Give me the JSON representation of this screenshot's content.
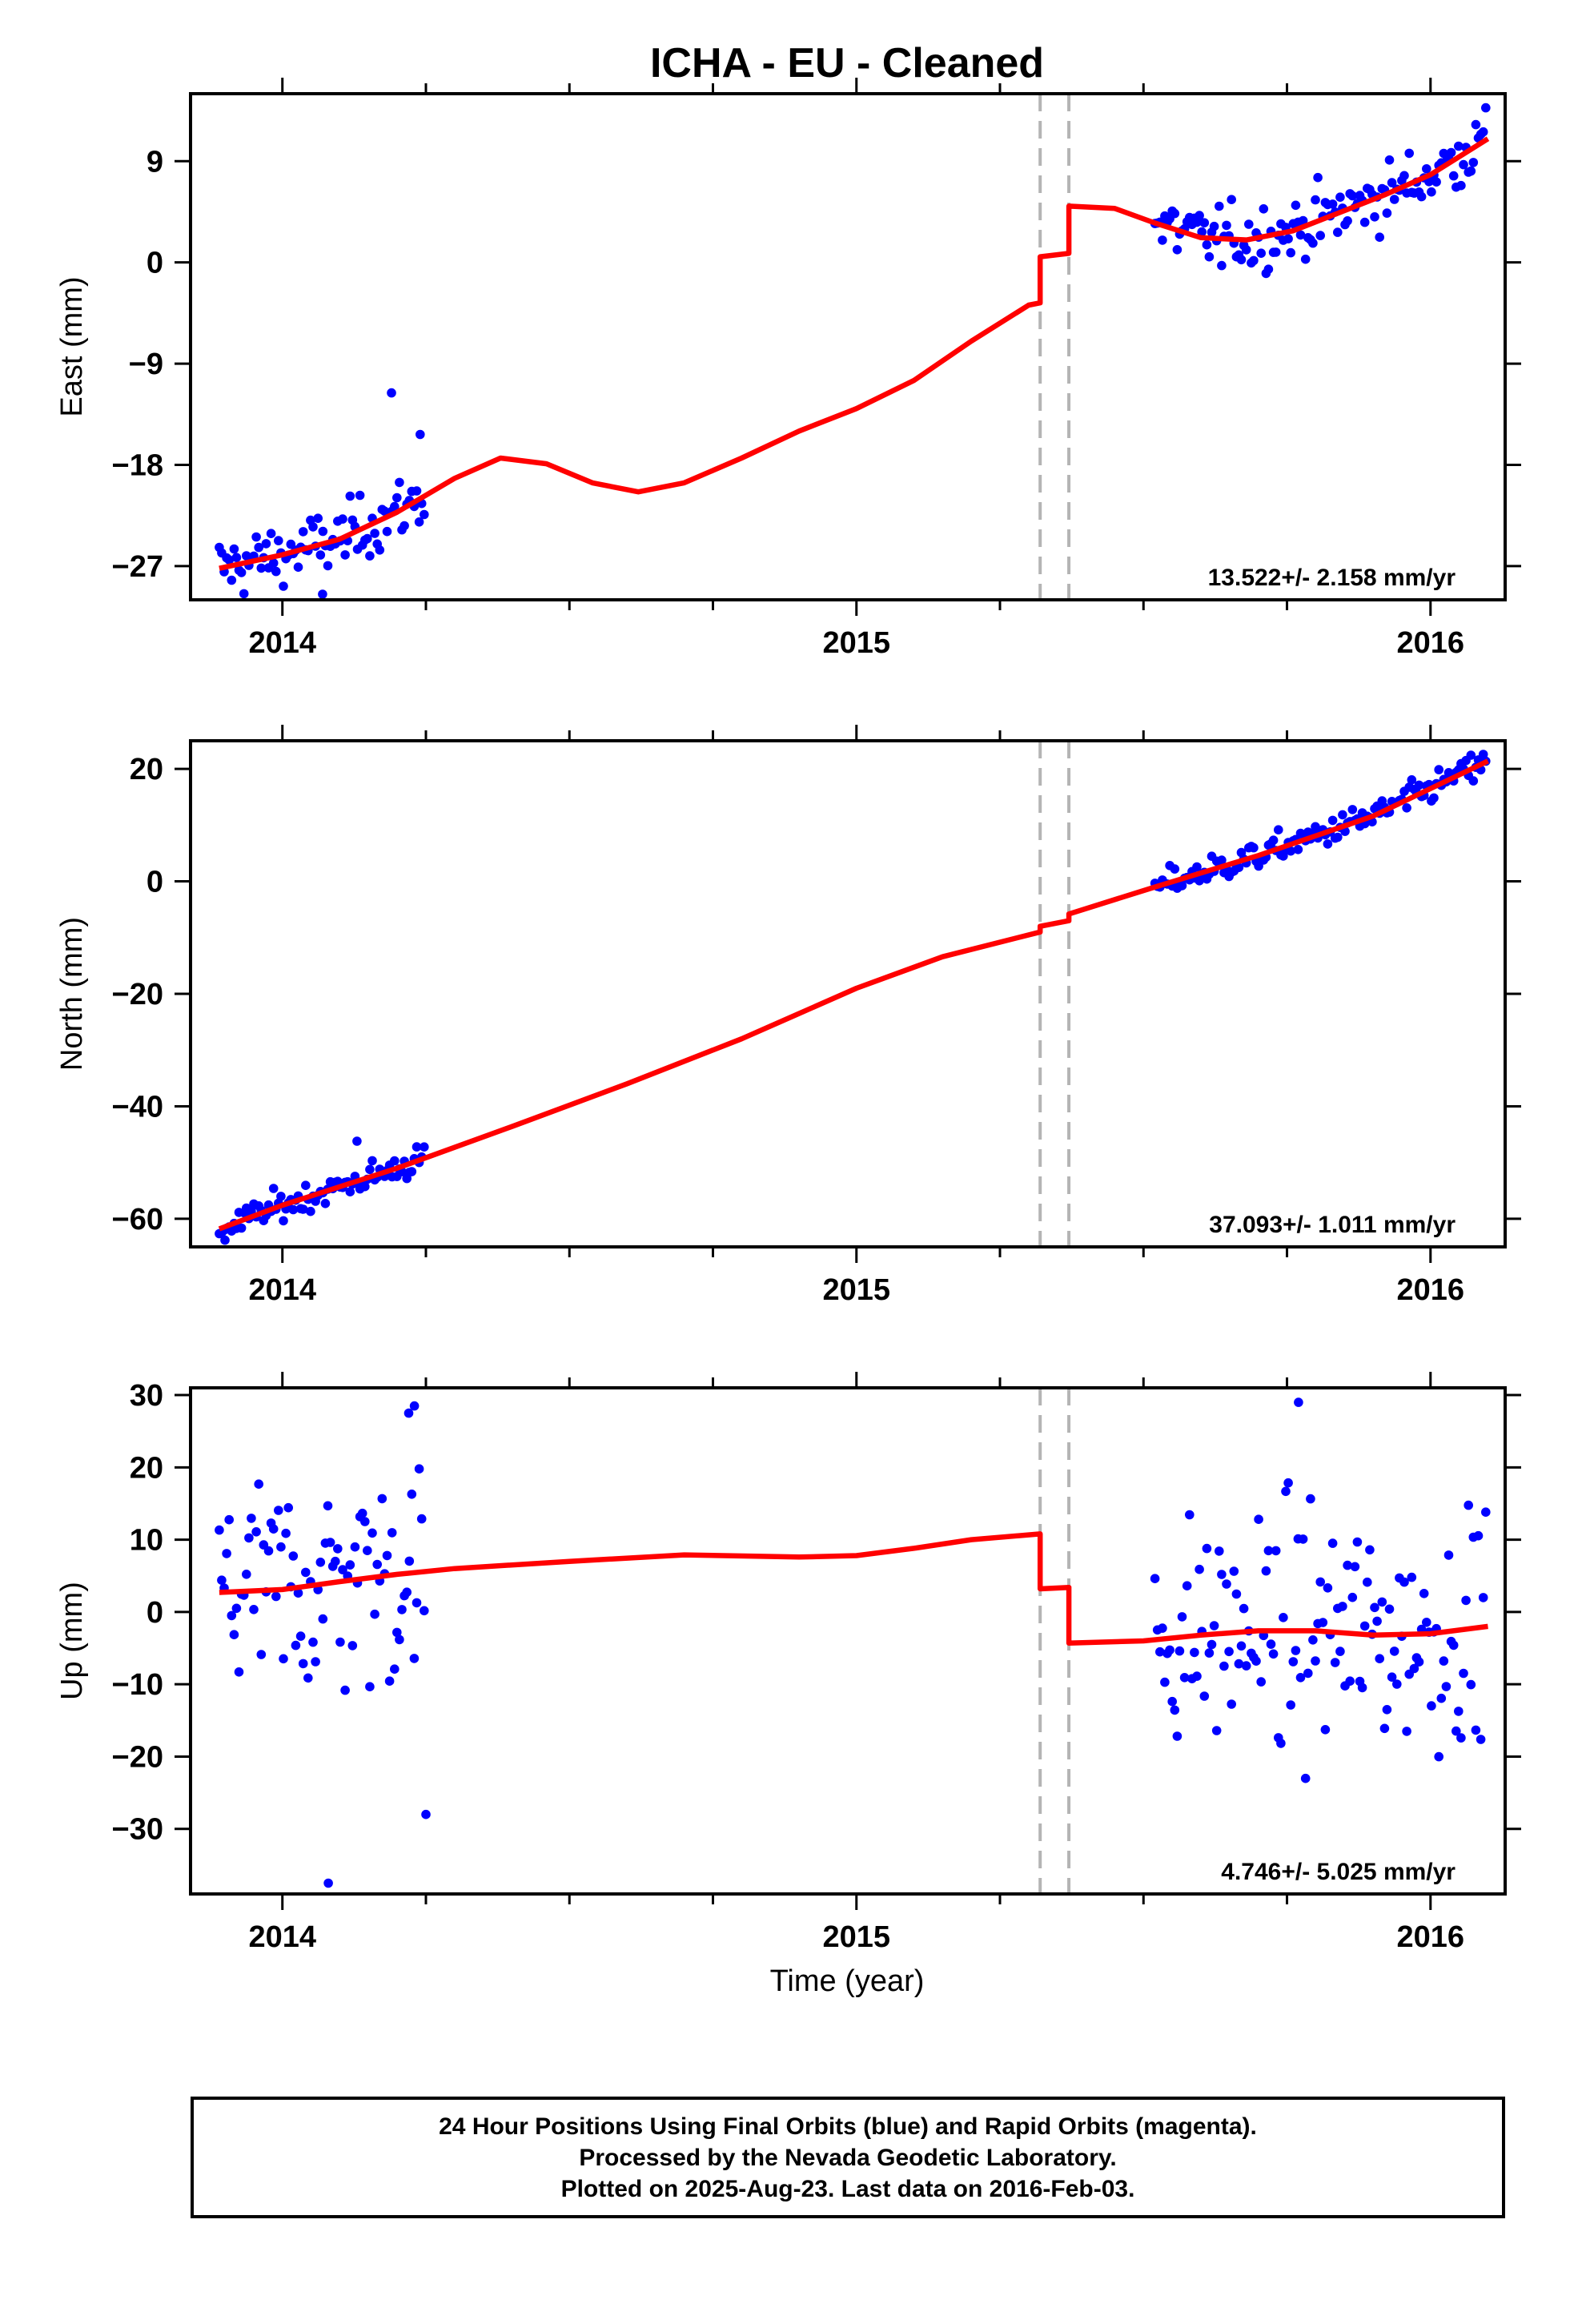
{
  "figure": {
    "title": "ICHA  - EU - Cleaned",
    "xlabel": "Time (year)"
  },
  "colors": {
    "data": "#0000ff",
    "model": "#ff0000",
    "steps": "#b4b4b4",
    "axes": "#000000"
  },
  "chart_data": [
    {
      "type": "scatter",
      "ylabel": "East (mm)",
      "rate": "13.522+/- 2.158 mm/yr",
      "xlim": [
        2013.84,
        2016.13
      ],
      "ylim": [
        -30,
        15
      ],
      "xticks": [
        2014,
        2015,
        2016
      ],
      "yticks": [
        -27,
        -18,
        -9,
        0,
        9
      ],
      "grid": false,
      "step_lines": [
        2015.32,
        2015.37
      ],
      "series": [
        {
          "kind": "points",
          "color": "#0000ff",
          "spread": 1.4,
          "outliers": [
            [
              2014.19,
              -11.6
            ],
            [
              2014.07,
              -29.5
            ],
            [
              2014.24,
              -15.3
            ]
          ]
        },
        {
          "kind": "model",
          "color": "#ff0000",
          "points": [
            [
              2013.89,
              -27.2
            ],
            [
              2014.0,
              -26.0
            ],
            [
              2014.1,
              -24.6
            ],
            [
              2014.2,
              -22.2
            ],
            [
              2014.3,
              -19.2
            ],
            [
              2014.38,
              -17.4
            ],
            [
              2014.46,
              -17.9
            ],
            [
              2014.54,
              -19.6
            ],
            [
              2014.62,
              -20.4
            ],
            [
              2014.7,
              -19.6
            ],
            [
              2014.8,
              -17.4
            ],
            [
              2014.9,
              -15.0
            ],
            [
              2015.0,
              -13.0
            ],
            [
              2015.1,
              -10.5
            ],
            [
              2015.2,
              -7.0
            ],
            [
              2015.3,
              -3.8
            ],
            [
              2015.32,
              -3.6
            ],
            [
              2015.32,
              0.5
            ],
            [
              2015.37,
              0.8
            ],
            [
              2015.37,
              5.0
            ],
            [
              2015.45,
              4.8
            ],
            [
              2015.52,
              3.5
            ],
            [
              2015.6,
              2.2
            ],
            [
              2015.68,
              2.0
            ],
            [
              2015.76,
              2.8
            ],
            [
              2015.84,
              4.4
            ],
            [
              2015.92,
              6.0
            ],
            [
              2016.0,
              7.8
            ],
            [
              2016.1,
              11.0
            ]
          ]
        },
        {
          "kind": "segments",
          "segments": [
            [
              2013.89,
              2014.25
            ],
            [
              2015.52,
              2016.1
            ]
          ]
        }
      ]
    },
    {
      "type": "scatter",
      "ylabel": "North (mm)",
      "rate": "37.093+/- 1.011 mm/yr",
      "xlim": [
        2013.84,
        2016.13
      ],
      "ylim": [
        -65,
        25
      ],
      "xticks": [
        2014,
        2015,
        2016
      ],
      "yticks": [
        -60,
        -40,
        -20,
        0,
        20
      ],
      "grid": false,
      "step_lines": [
        2015.32,
        2015.37
      ],
      "series": [
        {
          "kind": "points",
          "color": "#0000ff",
          "spread": 1.3,
          "outliers": [
            [
              2013.9,
              -63.8
            ],
            [
              2014.13,
              -46.2
            ]
          ]
        },
        {
          "kind": "model",
          "color": "#ff0000",
          "points": [
            [
              2013.89,
              -61.8
            ],
            [
              2014.0,
              -57.6
            ],
            [
              2014.2,
              -51.0
            ],
            [
              2014.4,
              -43.6
            ],
            [
              2014.6,
              -36.0
            ],
            [
              2014.8,
              -28.0
            ],
            [
              2015.0,
              -19.0
            ],
            [
              2015.15,
              -13.4
            ],
            [
              2015.32,
              -9.0
            ],
            [
              2015.32,
              -8.0
            ],
            [
              2015.37,
              -7.0
            ],
            [
              2015.37,
              -5.8
            ],
            [
              2015.52,
              -1.0
            ],
            [
              2015.7,
              4.6
            ],
            [
              2015.9,
              11.6
            ],
            [
              2016.1,
              21.4
            ]
          ]
        },
        {
          "kind": "segments",
          "segments": [
            [
              2013.89,
              2014.25
            ],
            [
              2015.52,
              2016.1
            ]
          ]
        }
      ]
    },
    {
      "type": "scatter",
      "ylabel": "Up (mm)",
      "rate": "4.746+/- 5.025 mm/yr",
      "xlim": [
        2013.84,
        2016.13
      ],
      "ylim": [
        -39,
        31
      ],
      "xticks": [
        2014,
        2015,
        2016
      ],
      "yticks": [
        -30,
        -20,
        -10,
        0,
        10,
        20,
        30
      ],
      "grid": false,
      "step_lines": [
        2015.32,
        2015.37
      ],
      "series": [
        {
          "kind": "points",
          "color": "#0000ff",
          "spread": 8.0,
          "outliers": [
            [
              2014.08,
              -37.5
            ],
            [
              2014.25,
              -28.0
            ],
            [
              2015.77,
              29.0
            ],
            [
              2014.23,
              28.5
            ],
            [
              2014.22,
              27.5
            ]
          ]
        },
        {
          "kind": "model",
          "color": "#ff0000",
          "points": [
            [
              2013.89,
              2.7
            ],
            [
              2014.0,
              3.1
            ],
            [
              2014.1,
              4.2
            ],
            [
              2014.2,
              5.2
            ],
            [
              2014.3,
              6.0
            ],
            [
              2014.5,
              7.0
            ],
            [
              2014.7,
              7.9
            ],
            [
              2014.9,
              7.6
            ],
            [
              2015.0,
              7.8
            ],
            [
              2015.1,
              8.8
            ],
            [
              2015.2,
              10.0
            ],
            [
              2015.32,
              10.8
            ],
            [
              2015.32,
              3.2
            ],
            [
              2015.37,
              3.4
            ],
            [
              2015.37,
              -4.3
            ],
            [
              2015.5,
              -4.0
            ],
            [
              2015.6,
              -3.2
            ],
            [
              2015.7,
              -2.6
            ],
            [
              2015.8,
              -2.6
            ],
            [
              2015.9,
              -3.2
            ],
            [
              2016.0,
              -3.0
            ],
            [
              2016.1,
              -2.0
            ]
          ]
        },
        {
          "kind": "segments",
          "segments": [
            [
              2013.89,
              2014.25
            ],
            [
              2015.52,
              2016.1
            ]
          ]
        }
      ]
    }
  ],
  "footer": {
    "line1": "24 Hour Positions Using Final Orbits (blue) and Rapid Orbits (magenta).",
    "line2": "Processed by the Nevada Geodetic Laboratory.",
    "line3": "Plotted on 2025-Aug-23. Last data on 2016-Feb-03."
  }
}
